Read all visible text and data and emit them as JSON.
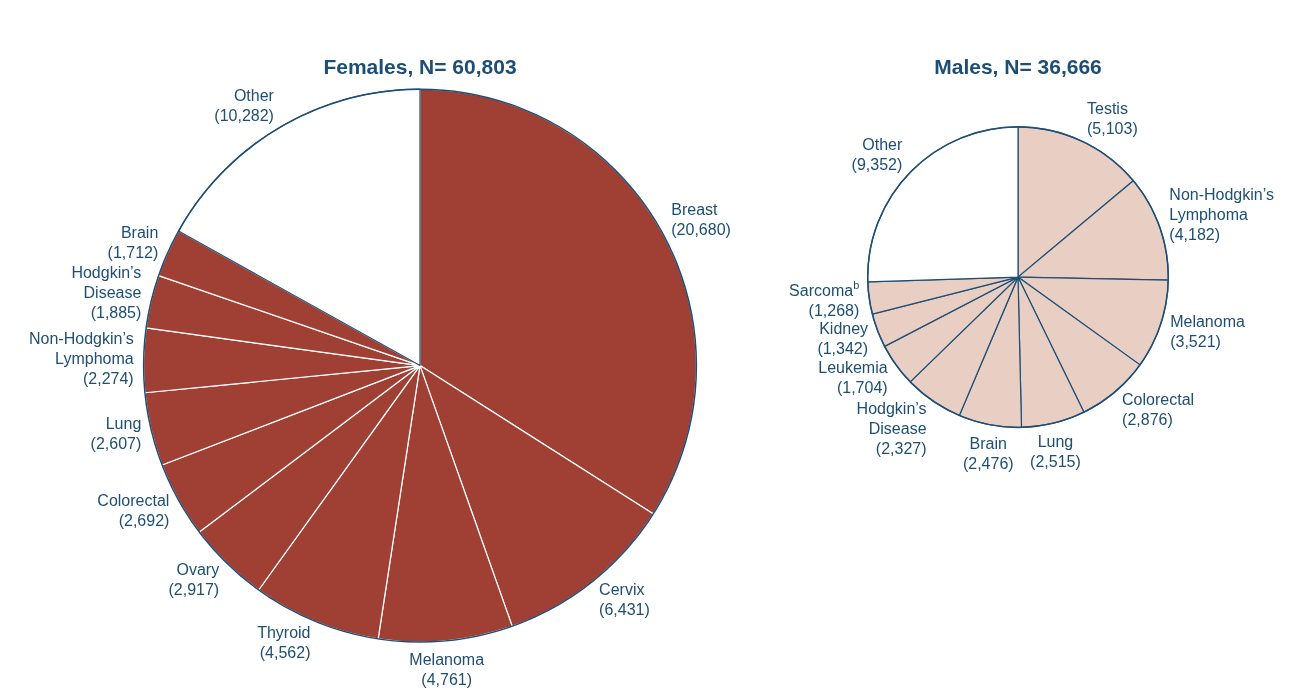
{
  "chart_data": [
    {
      "type": "pie",
      "title": "Females, N= 60,803",
      "categories": [
        "Breast",
        "Cervix",
        "Melanoma",
        "Thyroid",
        "Ovary",
        "Colorectal",
        "Lung",
        "Non-Hodgkin’s Lymphoma",
        "Hodgkin’s Disease",
        "Brain",
        "Other"
      ],
      "values": [
        20680,
        6431,
        4761,
        4562,
        2917,
        2692,
        2607,
        2274,
        1885,
        1712,
        10282
      ],
      "value_labels": [
        "(20,680)",
        "(6,431)",
        "(4,761)",
        "(4,562)",
        "(2,917)",
        "(2,692)",
        "(2,607)",
        "(2,274)",
        "(1,885)",
        "(1,712)",
        "(10,282)"
      ],
      "colors": [
        "#a04035",
        "#a04035",
        "#a04035",
        "#a04035",
        "#a04035",
        "#a04035",
        "#a04035",
        "#a04035",
        "#a04035",
        "#a04035",
        "#ffffff"
      ],
      "legend": false
    },
    {
      "type": "pie",
      "title": "Males, N= 36,666",
      "categories": [
        "Testis",
        "Non-Hodgkin’s Lymphoma",
        "Melanoma",
        "Colorectal",
        "Lung",
        "Brain",
        "Hodgkin’s Disease",
        "Leukemia",
        "Kidney",
        "Sarcoma$^{b}$",
        "Other"
      ],
      "values": [
        5103,
        4182,
        3521,
        2876,
        2515,
        2476,
        2327,
        1704,
        1342,
        1268,
        9352
      ],
      "value_labels": [
        "(5,103)",
        "(4,182)",
        "(3,521)",
        "(2,876)",
        "(2,515)",
        "(2,476)",
        "(2,327)",
        "(1,704)",
        "(1,342)",
        "(1,268)",
        "(9,352)"
      ],
      "colors": [
        "#e8cec3",
        "#e8cec3",
        "#e8cec3",
        "#e8cec3",
        "#e8cec3",
        "#e8cec3",
        "#e8cec3",
        "#e8cec3",
        "#e8cec3",
        "#e8cec3",
        "#ffffff"
      ],
      "legend": false
    }
  ]
}
